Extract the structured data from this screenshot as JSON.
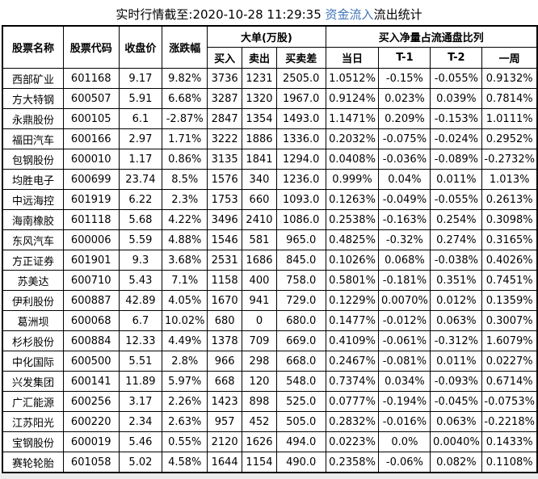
{
  "title": {
    "prefix": "实时行情截至:2020-10-28 11:29:35 ",
    "highlight": "资金流入",
    "suffix": "流出统计"
  },
  "table": {
    "headers": {
      "stock_name": "股票名称",
      "stock_code": "股票代码",
      "close_price": "收盘价",
      "change_pct": "涨跌幅",
      "group_large_orders": "大单(万股)",
      "buy_in": "买入",
      "sell_out": "卖出",
      "buy_sell_diff": "买卖差",
      "group_net_buy_ratio": "买入净量占流通盘比列",
      "day": "当日",
      "t_minus_1": "T-1",
      "t_minus_2": "T-2",
      "one_week": "一周"
    },
    "rows": [
      [
        "西部矿业",
        "601168",
        "9.17",
        "9.82%",
        "3736",
        "1231",
        "2505.0",
        "1.0512%",
        "-0.15%",
        "-0.055%",
        "0.9132%"
      ],
      [
        "方大特钢",
        "600507",
        "5.91",
        "6.68%",
        "3287",
        "1320",
        "1967.0",
        "0.9124%",
        "0.023%",
        "0.039%",
        "0.7814%"
      ],
      [
        "永鼎股份",
        "600105",
        "6.1",
        "-2.87%",
        "2847",
        "1354",
        "1493.0",
        "1.1471%",
        "0.209%",
        "-0.153%",
        "1.0111%"
      ],
      [
        "福田汽车",
        "600166",
        "2.97",
        "1.71%",
        "3222",
        "1886",
        "1336.0",
        "0.2032%",
        "-0.075%",
        "-0.024%",
        "0.2952%"
      ],
      [
        "包钢股份",
        "600010",
        "1.17",
        "0.86%",
        "3135",
        "1841",
        "1294.0",
        "0.0408%",
        "-0.036%",
        "-0.089%",
        "-0.2732%"
      ],
      [
        "均胜电子",
        "600699",
        "23.74",
        "8.5%",
        "1576",
        "340",
        "1236.0",
        "0.999%",
        "0.04%",
        "0.011%",
        "1.013%"
      ],
      [
        "中远海控",
        "601919",
        "6.22",
        "2.3%",
        "1753",
        "660",
        "1093.0",
        "0.1263%",
        "-0.049%",
        "-0.055%",
        "0.2613%"
      ],
      [
        "海南橡胶",
        "601118",
        "5.68",
        "4.22%",
        "3496",
        "2410",
        "1086.0",
        "0.2538%",
        "-0.163%",
        "0.254%",
        "0.3098%"
      ],
      [
        "东风汽车",
        "600006",
        "5.59",
        "4.88%",
        "1546",
        "581",
        "965.0",
        "0.4825%",
        "-0.32%",
        "0.274%",
        "0.3165%"
      ],
      [
        "方正证券",
        "601901",
        "9.3",
        "3.68%",
        "2531",
        "1686",
        "845.0",
        "0.1026%",
        "0.068%",
        "-0.038%",
        "0.4026%"
      ],
      [
        "苏美达",
        "600710",
        "5.43",
        "7.1%",
        "1158",
        "400",
        "758.0",
        "0.5801%",
        "-0.181%",
        "0.351%",
        "0.7451%"
      ],
      [
        "伊利股份",
        "600887",
        "42.89",
        "4.05%",
        "1670",
        "941",
        "729.0",
        "0.1229%",
        "0.0070%",
        "0.012%",
        "0.1359%"
      ],
      [
        "葛洲坝",
        "600068",
        "6.7",
        "10.02%",
        "680",
        "0",
        "680.0",
        "0.1477%",
        "-0.012%",
        "0.063%",
        "0.3007%"
      ],
      [
        "杉杉股份",
        "600884",
        "12.33",
        "4.49%",
        "1378",
        "709",
        "669.0",
        "0.4109%",
        "-0.061%",
        "-0.312%",
        "1.6079%"
      ],
      [
        "中化国际",
        "600500",
        "5.51",
        "2.8%",
        "966",
        "298",
        "668.0",
        "0.2467%",
        "-0.081%",
        "0.011%",
        "0.0227%"
      ],
      [
        "兴发集团",
        "600141",
        "11.89",
        "5.97%",
        "668",
        "120",
        "548.0",
        "0.7374%",
        "0.034%",
        "-0.093%",
        "0.6714%"
      ],
      [
        "广汇能源",
        "600256",
        "3.17",
        "2.26%",
        "1423",
        "898",
        "525.0",
        "0.0777%",
        "-0.194%",
        "-0.045%",
        "-0.0753%"
      ],
      [
        "江苏阳光",
        "600220",
        "2.34",
        "2.63%",
        "957",
        "452",
        "505.0",
        "0.2832%",
        "-0.016%",
        "0.063%",
        "-0.2218%"
      ],
      [
        "宝钢股份",
        "600019",
        "5.46",
        "0.55%",
        "2120",
        "1626",
        "494.0",
        "0.0223%",
        "0.0%",
        "0.0040%",
        "0.1433%"
      ],
      [
        "赛轮轮胎",
        "601058",
        "5.02",
        "4.58%",
        "1644",
        "1154",
        "490.0",
        "0.2358%",
        "-0.06%",
        "0.082%",
        "0.1108%"
      ]
    ]
  },
  "colors": {
    "title_highlight_blue": "#3E74B8",
    "stock_name_blue": "#17549E",
    "header_name_navy": "#31538F",
    "header_blue": "#2E6DA8",
    "border_black": "#000000"
  }
}
